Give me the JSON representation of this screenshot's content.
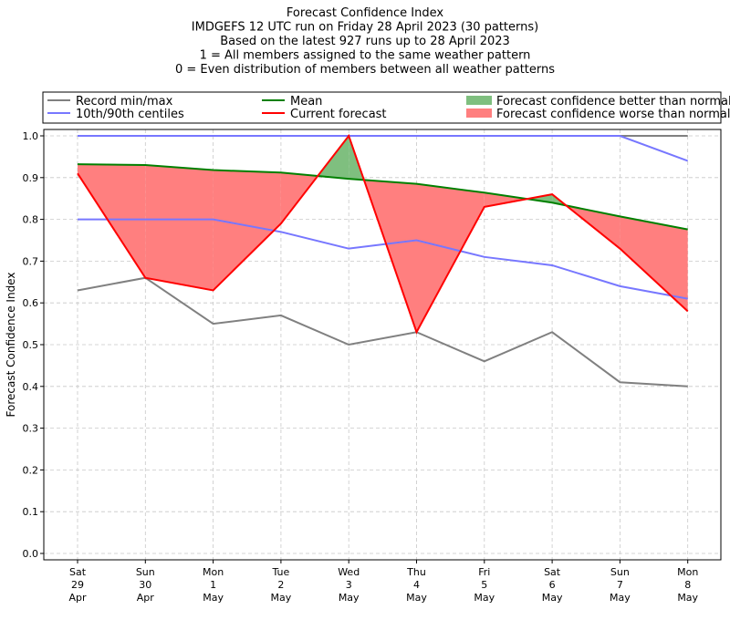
{
  "chart_data": {
    "type": "line",
    "title_lines": [
      "Forecast Confidence Index",
      "IMDGEFS 12 UTC run on Friday 28 April 2023 (30 patterns)",
      "Based on the latest 927 runs up to 28 April 2023",
      "1 = All members assigned to the same weather pattern",
      "0 = Even distribution of members between all weather patterns"
    ],
    "ylabel": "Forecast Confidence Index",
    "ylim": [
      0,
      1.0
    ],
    "yticks": [
      "0.0",
      "0.1",
      "0.2",
      "0.3",
      "0.4",
      "0.5",
      "0.6",
      "0.7",
      "0.8",
      "0.9",
      "1.0"
    ],
    "grid": true,
    "legend_position": "top, above plot",
    "categories": [
      [
        "Sat",
        "29",
        "Apr"
      ],
      [
        "Sun",
        "30",
        "Apr"
      ],
      [
        "Mon",
        "1",
        "May"
      ],
      [
        "Tue",
        "2",
        "May"
      ],
      [
        "Wed",
        "3",
        "May"
      ],
      [
        "Thu",
        "4",
        "May"
      ],
      [
        "Fri",
        "5",
        "May"
      ],
      [
        "Sat",
        "6",
        "May"
      ],
      [
        "Sun",
        "7",
        "May"
      ],
      [
        "Mon",
        "8",
        "May"
      ]
    ],
    "series": [
      {
        "name": "Record min/max",
        "key": "record_max",
        "color": "#808080",
        "values": [
          1.0,
          1.0,
          1.0,
          1.0,
          1.0,
          1.0,
          1.0,
          1.0,
          1.0,
          1.0
        ]
      },
      {
        "name": "Record min/max",
        "key": "record_min",
        "color": "#808080",
        "values": [
          0.63,
          0.66,
          0.55,
          0.57,
          0.5,
          0.53,
          0.46,
          0.53,
          0.41,
          0.4
        ]
      },
      {
        "name": "10th/90th centiles",
        "key": "p90",
        "color": "#7777ff",
        "values": [
          1.0,
          1.0,
          1.0,
          1.0,
          1.0,
          1.0,
          1.0,
          1.0,
          1.0,
          0.94
        ]
      },
      {
        "name": "10th/90th centiles",
        "key": "p10",
        "color": "#7777ff",
        "values": [
          0.8,
          0.8,
          0.8,
          0.77,
          0.73,
          0.75,
          0.71,
          0.69,
          0.64,
          0.61
        ]
      },
      {
        "name": "Mean",
        "key": "mean",
        "color": "#008000",
        "values": [
          0.932,
          0.93,
          0.918,
          0.912,
          0.897,
          0.885,
          0.864,
          0.84,
          0.807,
          0.776
        ]
      },
      {
        "name": "Current forecast",
        "key": "current",
        "color": "#ff0000",
        "values": [
          0.91,
          0.66,
          0.63,
          0.79,
          1.0,
          0.53,
          0.83,
          0.86,
          0.73,
          0.58
        ]
      }
    ],
    "fills": {
      "better": {
        "label": "Forecast confidence better than normal",
        "color": "#7fbf7f"
      },
      "worse": {
        "label": "Forecast confidence worse than normal",
        "color": "#ff7f7f"
      }
    },
    "legend": [
      {
        "label": "Record min/max",
        "kind": "line",
        "color": "#808080"
      },
      {
        "label": "10th/90th centiles",
        "kind": "line",
        "color": "#7777ff"
      },
      {
        "label": "Mean",
        "kind": "line",
        "color": "#008000"
      },
      {
        "label": "Current forecast",
        "kind": "line",
        "color": "#ff0000"
      },
      {
        "label": "Forecast confidence better than normal",
        "kind": "patch",
        "color": "#7fbf7f"
      },
      {
        "label": "Forecast confidence worse than normal",
        "kind": "patch",
        "color": "#ff7f7f"
      }
    ]
  }
}
